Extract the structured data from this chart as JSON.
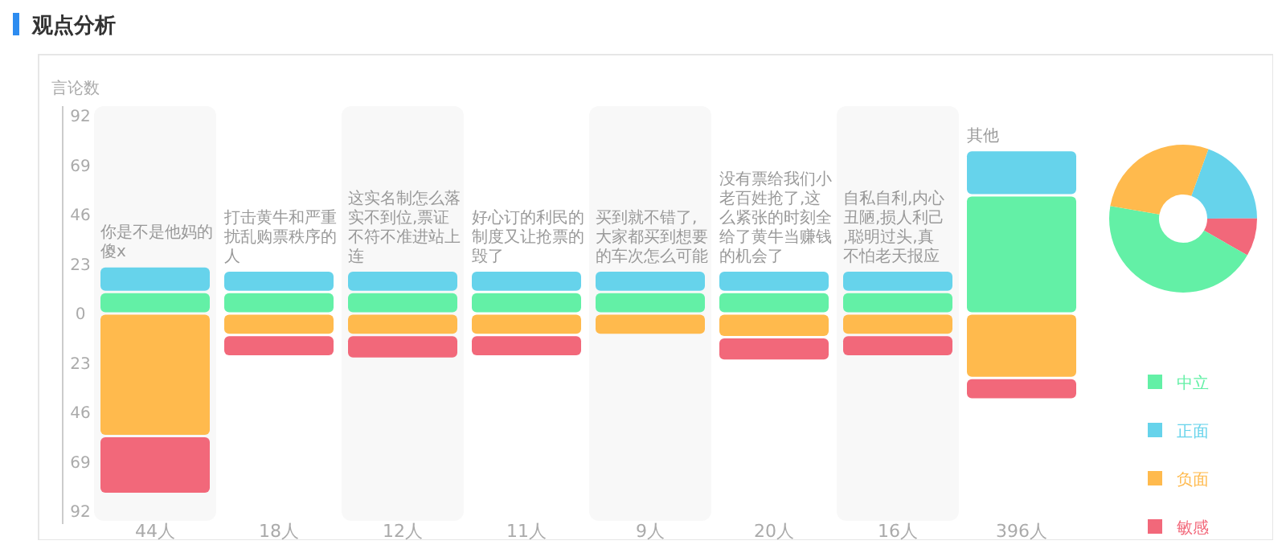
{
  "chart_data": [
    {
      "type": "bar",
      "title": "观点分析",
      "ylabel": "言论数",
      "stacked": true,
      "categories": [
        "44人",
        "18人",
        "12人",
        "11人",
        "9人",
        "20人",
        "16人",
        "396人"
      ],
      "ylim": [
        -92,
        92
      ],
      "yticks": [
        {
          "value": 92,
          "label": "92"
        },
        {
          "value": 69,
          "label": "69"
        },
        {
          "value": 46,
          "label": "46"
        },
        {
          "value": 23,
          "label": "23"
        },
        0,
        {
          "value": -23,
          "label": "23"
        },
        {
          "value": -46,
          "label": "46"
        },
        {
          "value": -69,
          "label": "69"
        },
        {
          "value": -92,
          "label": "92"
        }
      ],
      "grid": false,
      "legend": "right",
      "series": [
        {
          "name": "中立",
          "color": "#63f0a6",
          "values": [
            10,
            10,
            10,
            10,
            10,
            10,
            10,
            55
          ]
        },
        {
          "name": "正面",
          "color": "#66d3eb",
          "values": [
            12,
            10,
            10,
            10,
            10,
            10,
            10,
            21
          ]
        },
        {
          "name": "负面",
          "color": "#ffba4d",
          "values": [
            -57,
            -10,
            -10,
            -10,
            -10,
            -11,
            -10,
            -30
          ]
        },
        {
          "name": "敏感",
          "color": "#f2687a",
          "values": [
            -27,
            -10,
            -11,
            -10,
            null,
            -11,
            -10,
            -10
          ]
        }
      ],
      "annotations": [
        {
          "text": "你是不是他妈的傻x",
          "x": "44人",
          "y": 22
        },
        {
          "text": "打击黄牛和严重扰乱购票秩序的人",
          "x": "18人",
          "y": 20
        },
        {
          "text": "这实名制怎么落实不到位,票证不符不准进站上连",
          "x": "12人",
          "y": 20
        },
        {
          "text": "好心订的利民的制度又让抢票的毁了",
          "x": "11人",
          "y": 20
        },
        {
          "text": "买到就不错了,大家都买到想要的车次怎么可能",
          "x": "9人",
          "y": 20
        },
        {
          "text": "没有票给我们小老百姓抢了,这么紧张的时刻全给了黄牛当赚钱的机会了",
          "x": "20人",
          "y": 20
        },
        {
          "text": "自私自利,内心丑陋,损人利己,聪明过头,真不怕老天报应",
          "x": "16人",
          "y": 20
        },
        {
          "text": "其他",
          "x": "396人",
          "y": 76
        }
      ]
    },
    {
      "type": "donut",
      "categories": [
        null,
        null,
        null,
        null
      ],
      "values": [
        19.4,
        8.3,
        44.5,
        27.8
      ],
      "colors": [
        "#66d3eb",
        "#f2687a",
        "#63f0a6",
        "#ffba4d"
      ]
    }
  ]
}
